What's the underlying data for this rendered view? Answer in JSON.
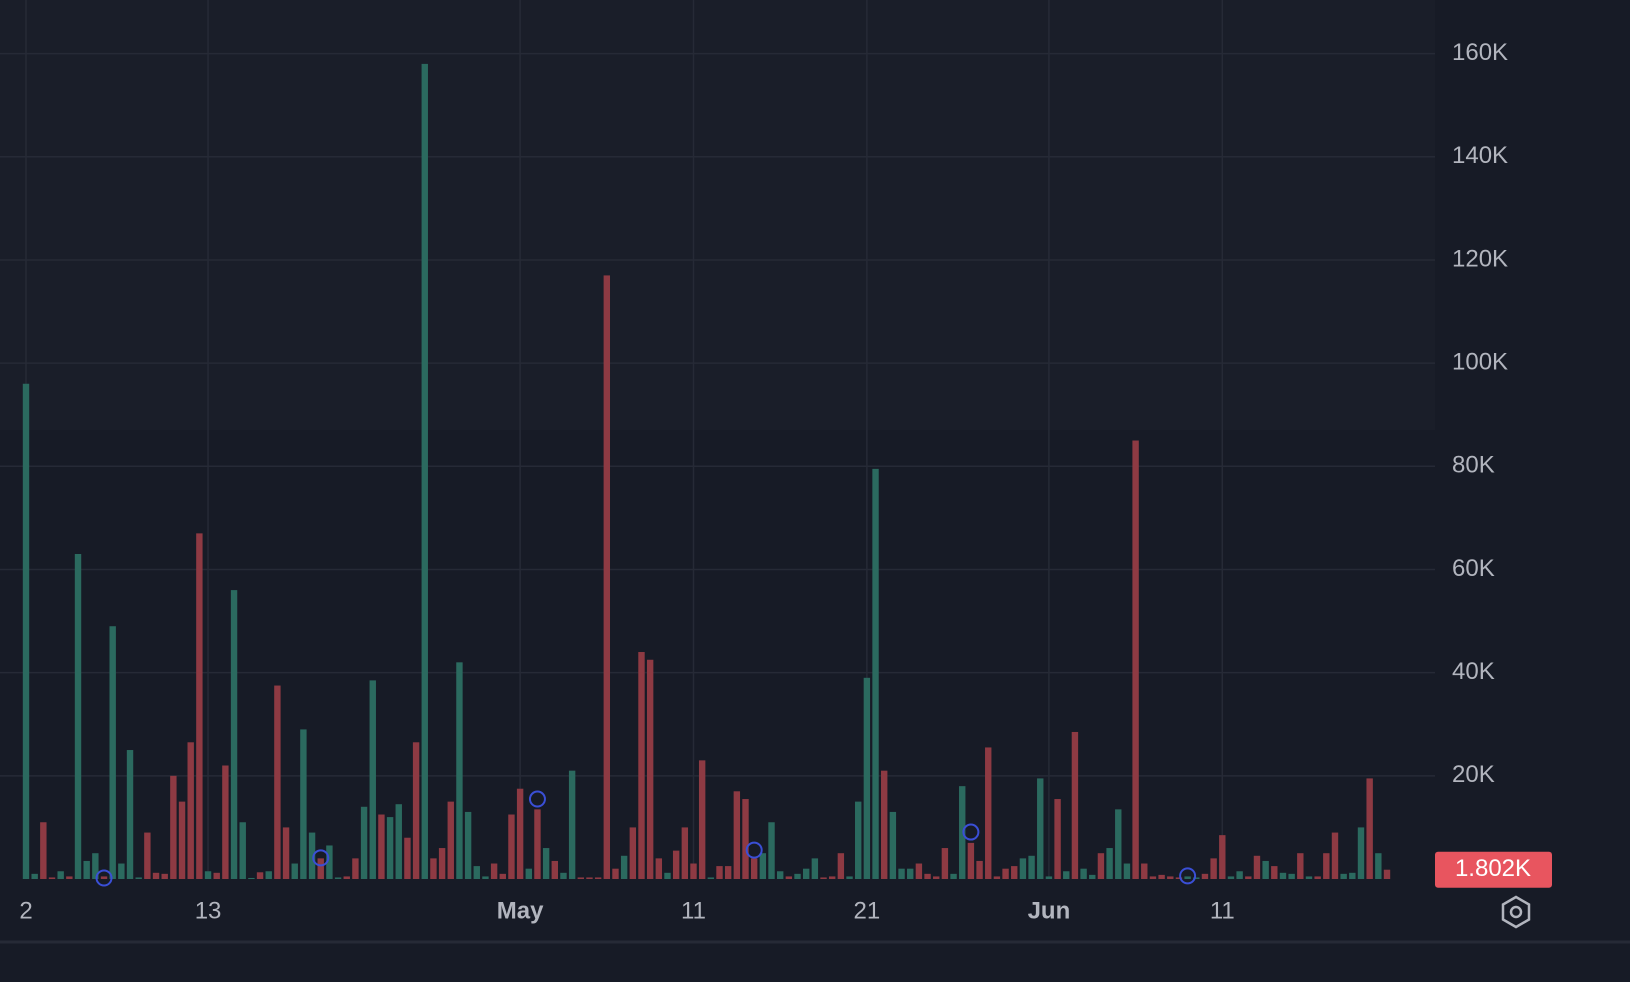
{
  "chart_data": {
    "type": "bar",
    "categories": [
      "2",
      null,
      null,
      null,
      null,
      null,
      null,
      null,
      null,
      null,
      null,
      null,
      null,
      null,
      null,
      null,
      null,
      null,
      null,
      null,
      null,
      "13",
      null,
      null,
      null,
      null,
      null,
      null,
      null,
      null,
      null,
      null,
      null,
      null,
      null,
      null,
      null,
      null,
      null,
      null,
      null,
      null,
      null,
      null,
      null,
      null,
      null,
      null,
      null,
      null,
      null,
      null,
      null,
      null,
      null,
      null,
      null,
      "May",
      null,
      null,
      null,
      null,
      null,
      null,
      null,
      null,
      null,
      null,
      null,
      null,
      null,
      null,
      null,
      null,
      null,
      null,
      null,
      "11",
      null,
      null,
      null,
      null,
      null,
      null,
      null,
      null,
      null,
      null,
      null,
      null,
      null,
      null,
      null,
      null,
      null,
      null,
      null,
      "21",
      null,
      null,
      null,
      null,
      null,
      null,
      null,
      null,
      null,
      null,
      null,
      null,
      null,
      null,
      null,
      null,
      null,
      null,
      null,
      null,
      "Jun",
      null,
      null,
      null,
      null,
      null,
      null,
      null,
      null,
      null,
      null,
      null,
      null,
      null,
      null,
      null,
      null,
      null,
      null,
      null,
      "11",
      null,
      null,
      null,
      null,
      null,
      null,
      null,
      null,
      null,
      null,
      null,
      null,
      null,
      null,
      null,
      null,
      null,
      null,
      null
    ],
    "values": [
      96000,
      1000,
      11000,
      300,
      1500,
      500,
      63000,
      3500,
      5000,
      500,
      49000,
      3000,
      25000,
      300,
      9000,
      1200,
      1000,
      20000,
      15000,
      26500,
      67000,
      1500,
      1200,
      22000,
      56000,
      11000,
      200,
      1300,
      1500,
      37500,
      10000,
      3000,
      29000,
      9000,
      4000,
      6500,
      300,
      500,
      4000,
      14000,
      38500,
      12500,
      12000,
      14500,
      8000,
      26500,
      158000,
      4000,
      6000,
      15000,
      42000,
      13000,
      2500,
      500,
      3000,
      1000,
      12500,
      17500,
      2000,
      13500,
      6000,
      3500,
      1200,
      21000,
      300,
      300,
      300,
      117000,
      2000,
      4500,
      10000,
      44000,
      42500,
      4000,
      1200,
      5500,
      10000,
      3000,
      23000,
      300,
      2500,
      2500,
      17000,
      15500,
      4000,
      5000,
      11000,
      1500,
      500,
      1000,
      2000,
      4000,
      300,
      500,
      5000,
      500,
      15000,
      39000,
      79500,
      21000,
      13000,
      2000,
      2000,
      3000,
      1000,
      500,
      6000,
      1000,
      18000,
      7000,
      3500,
      25500,
      500,
      2000,
      2500,
      4000,
      4500,
      19500,
      500,
      15500,
      1500,
      28500,
      2000,
      800,
      5000,
      6000,
      13500,
      3000,
      85000,
      3000,
      500,
      800,
      500,
      300,
      500,
      300,
      1000,
      4000,
      8500,
      500,
      1500,
      500,
      4500,
      3500,
      2500,
      1200,
      1000,
      5000,
      500,
      500,
      5000,
      9000,
      1000,
      1200,
      10000,
      19500,
      5000,
      1802
    ],
    "colors": [
      "#2b6a5f",
      "#2b6a5f",
      "#8e3a43",
      "#8e3a43",
      "#2b6a5f",
      "#8e3a43",
      "#2b6a5f",
      "#2b6a5f",
      "#2b6a5f",
      "#8e3a43",
      "#2b6a5f",
      "#2b6a5f",
      "#2b6a5f",
      "#2b6a5f",
      "#8e3a43",
      "#8e3a43",
      "#8e3a43",
      "#8e3a43",
      "#8e3a43",
      "#8e3a43",
      "#8e3a43",
      "#2b6a5f",
      "#8e3a43",
      "#8e3a43",
      "#2b6a5f",
      "#2b6a5f",
      "#2b6a5f",
      "#8e3a43",
      "#2b6a5f",
      "#8e3a43",
      "#8e3a43",
      "#2b6a5f",
      "#2b6a5f",
      "#2b6a5f",
      "#8e3a43",
      "#2b6a5f",
      "#2b6a5f",
      "#8e3a43",
      "#8e3a43",
      "#2b6a5f",
      "#2b6a5f",
      "#8e3a43",
      "#2b6a5f",
      "#2b6a5f",
      "#8e3a43",
      "#8e3a43",
      "#2b6a5f",
      "#8e3a43",
      "#8e3a43",
      "#8e3a43",
      "#2b6a5f",
      "#2b6a5f",
      "#2b6a5f",
      "#2b6a5f",
      "#8e3a43",
      "#8e3a43",
      "#8e3a43",
      "#8e3a43",
      "#2b6a5f",
      "#8e3a43",
      "#2b6a5f",
      "#8e3a43",
      "#2b6a5f",
      "#2b6a5f",
      "#8e3a43",
      "#8e3a43",
      "#8e3a43",
      "#8e3a43",
      "#8e3a43",
      "#2b6a5f",
      "#8e3a43",
      "#8e3a43",
      "#8e3a43",
      "#8e3a43",
      "#2b6a5f",
      "#8e3a43",
      "#8e3a43",
      "#8e3a43",
      "#8e3a43",
      "#2b6a5f",
      "#8e3a43",
      "#8e3a43",
      "#8e3a43",
      "#8e3a43",
      "#8e3a43",
      "#2b6a5f",
      "#2b6a5f",
      "#2b6a5f",
      "#8e3a43",
      "#2b6a5f",
      "#2b6a5f",
      "#2b6a5f",
      "#8e3a43",
      "#8e3a43",
      "#8e3a43",
      "#2b6a5f",
      "#2b6a5f",
      "#2b6a5f",
      "#2b6a5f",
      "#8e3a43",
      "#2b6a5f",
      "#2b6a5f",
      "#2b6a5f",
      "#8e3a43",
      "#8e3a43",
      "#8e3a43",
      "#8e3a43",
      "#2b6a5f",
      "#2b6a5f",
      "#8e3a43",
      "#8e3a43",
      "#8e3a43",
      "#8e3a43",
      "#8e3a43",
      "#8e3a43",
      "#2b6a5f",
      "#2b6a5f",
      "#2b6a5f",
      "#2b6a5f",
      "#8e3a43",
      "#2b6a5f",
      "#8e3a43",
      "#2b6a5f",
      "#2b6a5f",
      "#8e3a43",
      "#2b6a5f",
      "#2b6a5f",
      "#2b6a5f",
      "#8e3a43",
      "#8e3a43",
      "#8e3a43",
      "#8e3a43",
      "#8e3a43",
      "#8e3a43",
      "#2b6a5f",
      "#2b6a5f",
      "#8e3a43",
      "#8e3a43",
      "#8e3a43",
      "#2b6a5f",
      "#2b6a5f",
      "#8e3a43",
      "#8e3a43",
      "#2b6a5f",
      "#8e3a43",
      "#2b6a5f",
      "#2b6a5f",
      "#8e3a43",
      "#2b6a5f",
      "#8e3a43",
      "#8e3a43",
      "#8e3a43",
      "#2b6a5f",
      "#2b6a5f",
      "#2b6a5f",
      "#8e3a43",
      "#2b6a5f",
      "#8e3a43"
    ],
    "last_value_label": "1.802K",
    "last_label_color": "#e8555f",
    "markers": [
      {
        "x": 9,
        "value": 200
      },
      {
        "x": 34,
        "value": 4100
      },
      {
        "x": 59,
        "value": 15500
      },
      {
        "x": 84,
        "value": 5600
      },
      {
        "x": 109,
        "value": 9100
      },
      {
        "x": 134,
        "value": 600
      }
    ],
    "marker_color": "#3a4fd6",
    "ylim": [
      0,
      170000
    ],
    "yticks": [
      {
        "value": 20000,
        "label": "20K"
      },
      {
        "value": 40000,
        "label": "40K"
      },
      {
        "value": 60000,
        "label": "60K"
      },
      {
        "value": 80000,
        "label": "80K"
      },
      {
        "value": 100000,
        "label": "100K"
      },
      {
        "value": 120000,
        "label": "120K"
      },
      {
        "value": 140000,
        "label": "140K"
      },
      {
        "value": 160000,
        "label": "160K"
      }
    ],
    "grid": true
  }
}
